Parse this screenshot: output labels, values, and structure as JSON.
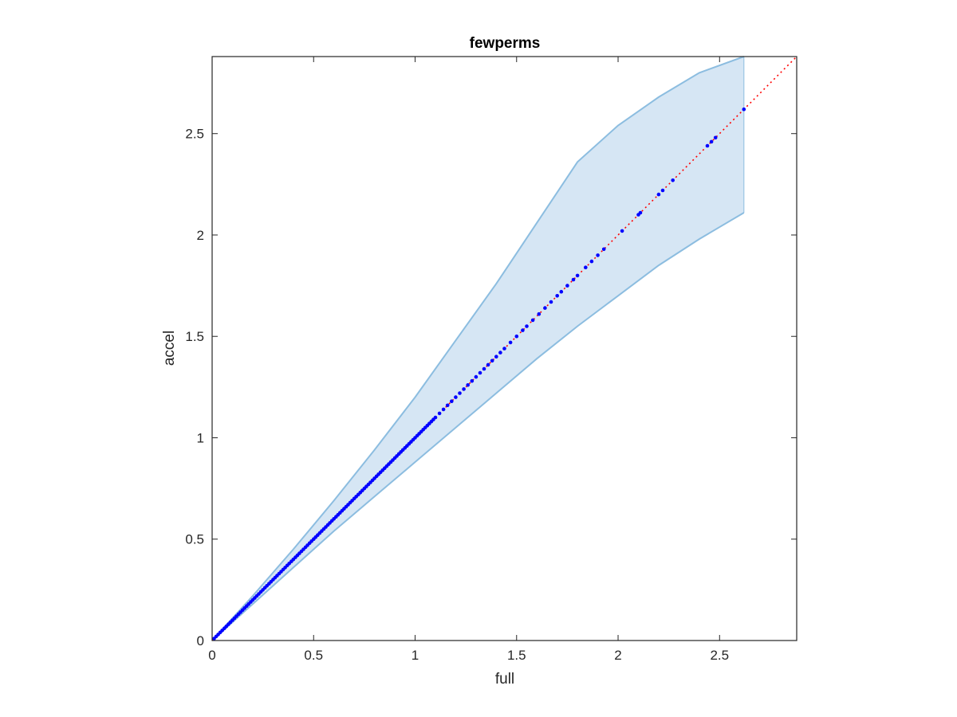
{
  "chart_data": {
    "type": "scatter",
    "title": "fewperms",
    "xlabel": "full",
    "ylabel": "accel",
    "xlim": [
      0,
      2.88
    ],
    "ylim": [
      0,
      2.88
    ],
    "xticks": [
      0,
      0.5,
      1,
      1.5,
      2,
      2.5
    ],
    "yticks": [
      0,
      0.5,
      1,
      1.5,
      2,
      2.5
    ],
    "xtick_labels": [
      "0",
      "0.5",
      "1",
      "1.5",
      "2",
      "2.5"
    ],
    "ytick_labels": [
      "0",
      "0.5",
      "1",
      "1.5",
      "2",
      "2.5"
    ],
    "grid": false,
    "legend": "none",
    "colors": {
      "points": "#0000ff",
      "identity": "#ff0000",
      "band_fill": "#d6e6f4",
      "band_edge": "#8cbde0",
      "axes": "#262626"
    },
    "identity_line": {
      "from": [
        0,
        0
      ],
      "to": [
        2.88,
        2.88
      ],
      "style": "dotted"
    },
    "band": {
      "x": [
        0,
        0.2,
        0.4,
        0.6,
        0.8,
        1.0,
        1.2,
        1.4,
        1.6,
        1.8,
        2.0,
        2.2,
        2.4,
        2.62
      ],
      "upper": [
        0,
        0.22,
        0.45,
        0.69,
        0.94,
        1.2,
        1.48,
        1.76,
        2.06,
        2.36,
        2.54,
        2.68,
        2.8,
        2.88
      ],
      "lower": [
        0,
        0.18,
        0.36,
        0.54,
        0.71,
        0.88,
        1.05,
        1.22,
        1.39,
        1.55,
        1.7,
        1.85,
        1.98,
        2.11
      ]
    },
    "points": {
      "x": [
        0.01,
        0.02,
        0.03,
        0.04,
        0.05,
        0.06,
        0.07,
        0.08,
        0.09,
        0.1,
        0.11,
        0.12,
        0.13,
        0.14,
        0.15,
        0.16,
        0.17,
        0.18,
        0.19,
        0.2,
        0.21,
        0.22,
        0.23,
        0.24,
        0.25,
        0.26,
        0.27,
        0.28,
        0.29,
        0.3,
        0.31,
        0.32,
        0.33,
        0.34,
        0.35,
        0.36,
        0.37,
        0.38,
        0.39,
        0.4,
        0.41,
        0.42,
        0.43,
        0.44,
        0.45,
        0.46,
        0.47,
        0.48,
        0.49,
        0.5,
        0.51,
        0.52,
        0.53,
        0.54,
        0.55,
        0.56,
        0.57,
        0.58,
        0.59,
        0.6,
        0.61,
        0.62,
        0.63,
        0.64,
        0.65,
        0.66,
        0.67,
        0.68,
        0.69,
        0.7,
        0.71,
        0.72,
        0.73,
        0.74,
        0.75,
        0.76,
        0.77,
        0.78,
        0.79,
        0.8,
        0.81,
        0.82,
        0.83,
        0.84,
        0.85,
        0.86,
        0.87,
        0.88,
        0.89,
        0.9,
        0.91,
        0.92,
        0.93,
        0.94,
        0.95,
        0.96,
        0.97,
        0.98,
        0.99,
        1.0,
        1.01,
        1.02,
        1.03,
        1.04,
        1.05,
        1.06,
        1.07,
        1.08,
        1.09,
        1.1,
        1.12,
        1.14,
        1.16,
        1.18,
        1.2,
        1.22,
        1.24,
        1.26,
        1.28,
        1.3,
        1.32,
        1.34,
        1.36,
        1.38,
        1.4,
        1.42,
        1.44,
        1.47,
        1.5,
        1.53,
        1.55,
        1.58,
        1.61,
        1.64,
        1.67,
        1.7,
        1.72,
        1.75,
        1.78,
        1.8,
        1.84,
        1.87,
        1.9,
        1.93,
        2.02,
        2.1,
        2.11,
        2.2,
        2.22,
        2.27,
        2.44,
        2.46,
        2.48,
        2.62
      ],
      "y": [
        0.01,
        0.02,
        0.03,
        0.04,
        0.05,
        0.06,
        0.07,
        0.08,
        0.09,
        0.1,
        0.11,
        0.12,
        0.13,
        0.14,
        0.15,
        0.16,
        0.17,
        0.18,
        0.19,
        0.2,
        0.21,
        0.22,
        0.23,
        0.24,
        0.25,
        0.26,
        0.27,
        0.28,
        0.29,
        0.3,
        0.31,
        0.32,
        0.33,
        0.34,
        0.35,
        0.36,
        0.37,
        0.38,
        0.39,
        0.4,
        0.41,
        0.42,
        0.43,
        0.44,
        0.45,
        0.46,
        0.47,
        0.48,
        0.49,
        0.5,
        0.51,
        0.52,
        0.53,
        0.54,
        0.55,
        0.56,
        0.57,
        0.58,
        0.59,
        0.6,
        0.61,
        0.62,
        0.63,
        0.64,
        0.65,
        0.66,
        0.67,
        0.68,
        0.69,
        0.7,
        0.71,
        0.72,
        0.73,
        0.74,
        0.75,
        0.76,
        0.77,
        0.78,
        0.79,
        0.8,
        0.81,
        0.82,
        0.83,
        0.84,
        0.85,
        0.86,
        0.87,
        0.88,
        0.89,
        0.9,
        0.91,
        0.92,
        0.93,
        0.94,
        0.95,
        0.96,
        0.97,
        0.98,
        0.99,
        1.0,
        1.01,
        1.02,
        1.03,
        1.04,
        1.05,
        1.06,
        1.07,
        1.08,
        1.09,
        1.1,
        1.12,
        1.14,
        1.16,
        1.18,
        1.2,
        1.22,
        1.24,
        1.26,
        1.28,
        1.3,
        1.32,
        1.34,
        1.36,
        1.38,
        1.4,
        1.42,
        1.44,
        1.47,
        1.5,
        1.53,
        1.55,
        1.58,
        1.61,
        1.64,
        1.67,
        1.7,
        1.72,
        1.75,
        1.78,
        1.8,
        1.84,
        1.87,
        1.9,
        1.93,
        2.02,
        2.1,
        2.11,
        2.2,
        2.22,
        2.27,
        2.44,
        2.46,
        2.48,
        2.62
      ]
    }
  }
}
